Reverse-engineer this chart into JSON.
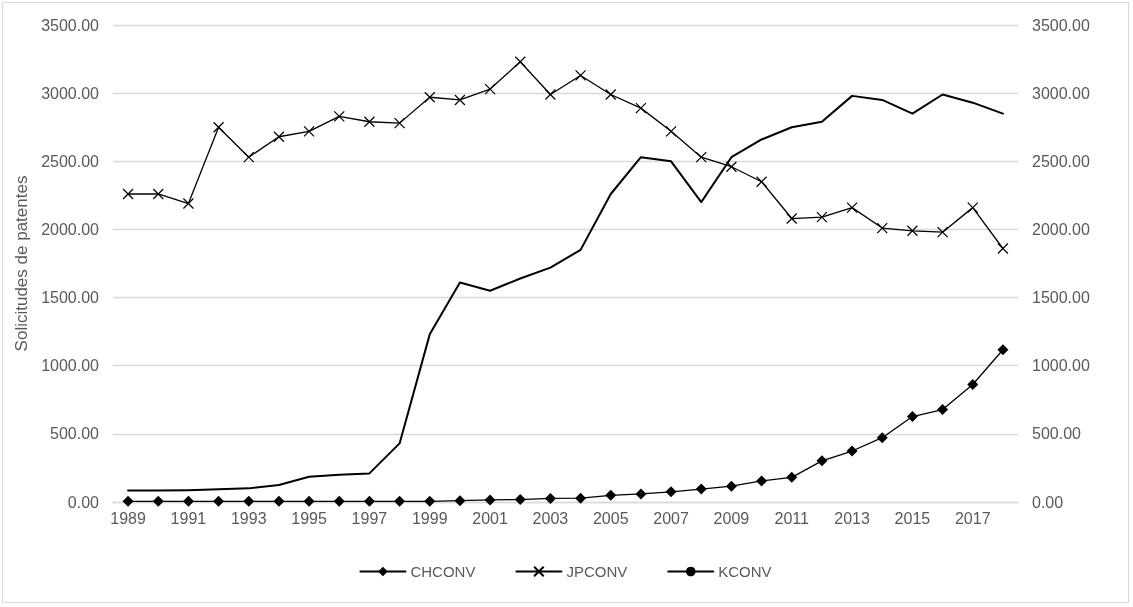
{
  "chart_data": {
    "type": "line",
    "ylabel": "Solicitudes de patentes",
    "categories": [
      "1989",
      null,
      "1991",
      null,
      "1993",
      null,
      "1995",
      null,
      "1997",
      null,
      "1999",
      null,
      "2001",
      null,
      "2003",
      null,
      "2005",
      null,
      "2007",
      null,
      "2009",
      null,
      "2011",
      null,
      "2013",
      null,
      "2015",
      null,
      "2017",
      null
    ],
    "series": [
      {
        "name": "CHCONV",
        "color": "#000000",
        "marker": "diamond",
        "values": [
          5,
          5,
          5,
          5,
          5,
          5,
          5,
          5,
          5,
          5,
          5,
          10,
          15,
          18,
          26,
          28,
          49,
          59,
          75,
          95,
          116,
          155,
          181,
          302,
          374,
          472,
          627,
          678,
          862,
          1117
        ]
      },
      {
        "name": "JPCONV",
        "color": "#000000",
        "marker": "cross",
        "values": [
          2260,
          2260,
          2190,
          2750,
          2530,
          2680,
          2720,
          2830,
          2790,
          2780,
          2970,
          2950,
          3030,
          3230,
          2990,
          3130,
          2990,
          2890,
          2720,
          2530,
          2460,
          2350,
          2080,
          2090,
          2160,
          2010,
          1990,
          1980,
          2160,
          1860
        ]
      },
      {
        "name": "KCONV",
        "color": "#000000",
        "marker": "none",
        "values": [
          85,
          85,
          87,
          93,
          100,
          125,
          185,
          200,
          210,
          430,
          1230,
          1610,
          1550,
          1640,
          1720,
          1850,
          2260,
          2530,
          2500,
          2200,
          2530,
          2660,
          2750,
          2790,
          2980,
          2950,
          2850,
          2990,
          2930,
          2850
        ]
      }
    ],
    "ylim": [
      0,
      3500
    ],
    "yticks": [
      {
        "value": 0,
        "label": "0.00"
      },
      {
        "value": 500,
        "label": "500.00"
      },
      {
        "value": 1000,
        "label": "1000.00"
      },
      {
        "value": 1500,
        "label": "1500.00"
      },
      {
        "value": 2000,
        "label": "2000.00"
      },
      {
        "value": 2500,
        "label": "2500.00"
      },
      {
        "value": 3000,
        "label": "3000.00"
      },
      {
        "value": 3500,
        "label": "3500.00"
      }
    ],
    "y2lim": [
      0,
      3500
    ],
    "y2ticks": [
      {
        "value": 0,
        "label": "0.00"
      },
      {
        "value": 500,
        "label": "500.00"
      },
      {
        "value": 1000,
        "label": "1000.00"
      },
      {
        "value": 1500,
        "label": "1500.00"
      },
      {
        "value": 2000,
        "label": "2000.00"
      },
      {
        "value": 2500,
        "label": "2500.00"
      },
      {
        "value": 3000,
        "label": "3000.00"
      },
      {
        "value": 3500,
        "label": "3500.00"
      }
    ],
    "grid": "y",
    "legend": "bottom",
    "line_style": "solid"
  }
}
